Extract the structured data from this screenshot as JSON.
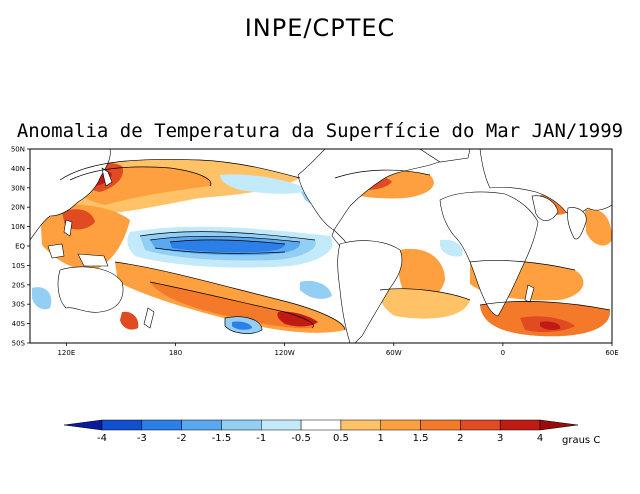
{
  "header": {
    "org": "INPE/CPTEC",
    "title": "Anomalia de Temperatura da Superfície do Mar JAN/1999"
  },
  "map": {
    "projection": "equirectangular",
    "lon_range_deg_east": [
      100,
      420
    ],
    "lat_range": [
      -50,
      50
    ],
    "lat_ticks": [
      "50N",
      "40N",
      "30N",
      "20N",
      "10N",
      "EQ",
      "10S",
      "20S",
      "30S",
      "40S",
      "50S"
    ],
    "lon_ticks": [
      "120E",
      "180",
      "120W",
      "60W",
      "0",
      "60E"
    ]
  },
  "legend": {
    "unit": "graus C",
    "levels": [
      "-4",
      "-3",
      "-2",
      "-1.5",
      "-1",
      "-0.5",
      "0.5",
      "1",
      "1.5",
      "2",
      "3",
      "4"
    ],
    "colors": [
      "#0a1a9c",
      "#0f4fd0",
      "#2b7fe6",
      "#5aa8f0",
      "#93cff5",
      "#c2eafa",
      "#ffffff",
      "#ffc266",
      "#ffa040",
      "#f47a2a",
      "#e04b22",
      "#c01a14",
      "#9c0a0a"
    ]
  }
}
